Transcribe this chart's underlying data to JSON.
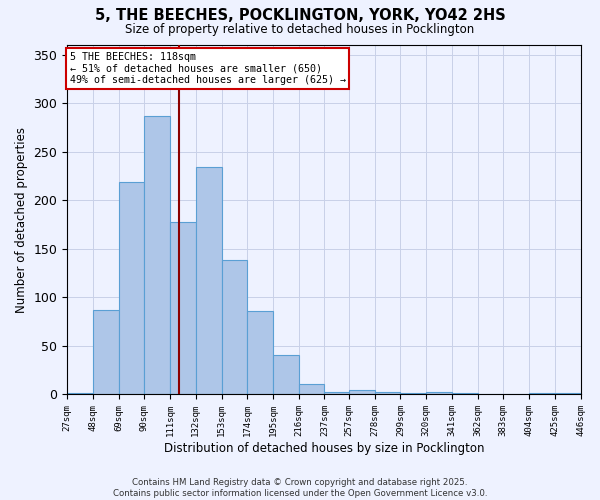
{
  "title_line1": "5, THE BEECHES, POCKLINGTON, YORK, YO42 2HS",
  "title_line2": "Size of property relative to detached houses in Pocklington",
  "xlabel": "Distribution of detached houses by size in Pocklington",
  "ylabel": "Number of detached properties",
  "bar_values": [
    2,
    87,
    219,
    287,
    178,
    234,
    139,
    86,
    41,
    11,
    3,
    5,
    3,
    2,
    3,
    2,
    1,
    1,
    2,
    2
  ],
  "bin_edges": [
    27,
    48,
    69,
    90,
    111,
    132,
    153,
    174,
    195,
    216,
    237,
    257,
    278,
    299,
    320,
    341,
    362,
    383,
    404,
    425,
    446
  ],
  "bin_labels": [
    "27sqm",
    "48sqm",
    "69sqm",
    "90sqm",
    "111sqm",
    "132sqm",
    "153sqm",
    "174sqm",
    "195sqm",
    "216sqm",
    "237sqm",
    "257sqm",
    "278sqm",
    "299sqm",
    "320sqm",
    "341sqm",
    "362sqm",
    "383sqm",
    "404sqm",
    "425sqm",
    "446sqm"
  ],
  "bar_color": "#aec6e8",
  "bar_edge_color": "#5a9fd4",
  "vline_x": 118,
  "vline_color": "#8b0000",
  "annotation_text": "5 THE BEECHES: 118sqm\n← 51% of detached houses are smaller (650)\n49% of semi-detached houses are larger (625) →",
  "annotation_box_color": "#ffffff",
  "annotation_box_edge": "#cc0000",
  "ylim": [
    0,
    360
  ],
  "background_color": "#eef2ff",
  "footer_line1": "Contains HM Land Registry data © Crown copyright and database right 2025.",
  "footer_line2": "Contains public sector information licensed under the Open Government Licence v3.0."
}
